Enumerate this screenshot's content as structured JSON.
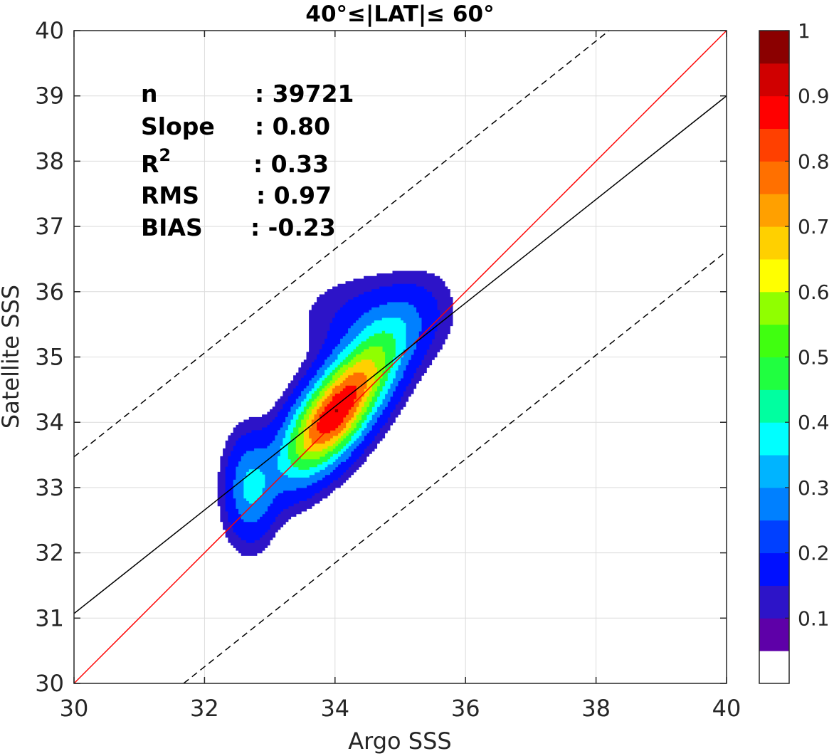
{
  "chart_data": {
    "type": "contour",
    "title": "40°≤|LAT|≤ 60°",
    "xlabel": "Argo SSS",
    "ylabel": "Satellite SSS",
    "xlim": [
      30,
      40
    ],
    "ylim": [
      30,
      40
    ],
    "xticks": [
      30,
      32,
      34,
      36,
      38,
      40
    ],
    "yticks": [
      30,
      31,
      32,
      33,
      34,
      35,
      36,
      37,
      38,
      39,
      40
    ],
    "grid": true,
    "stats": [
      {
        "label": "n",
        "value": ": 39721"
      },
      {
        "label": "Slope",
        "value": ": 0.80"
      },
      {
        "label": "R",
        "sup": "2",
        "value": ": 0.33"
      },
      {
        "label": "RMS",
        "value": ": 0.97"
      },
      {
        "label": "BIAS",
        "value": ": -0.23"
      }
    ],
    "lines": [
      {
        "name": "one-to-one",
        "color": "#ff0000",
        "style": "solid",
        "x": [
          30,
          40
        ],
        "y": [
          30,
          40
        ]
      },
      {
        "name": "regression",
        "color": "#000000",
        "style": "solid",
        "x": [
          30,
          40
        ],
        "y": [
          31.07,
          39.0
        ]
      },
      {
        "name": "upper-bound",
        "color": "#000000",
        "style": "dashed",
        "x": [
          30,
          38.2
        ],
        "y": [
          33.47,
          40.0
        ]
      },
      {
        "name": "lower-bound",
        "color": "#000000",
        "style": "dashed",
        "x": [
          31.68,
          40
        ],
        "y": [
          30.0,
          36.62
        ]
      }
    ],
    "density_peak": {
      "x": 34.0,
      "y": 34.15
    },
    "contour_levels": [
      0.05,
      0.1,
      0.2,
      0.3,
      0.4,
      0.5,
      0.6,
      0.7,
      0.8,
      0.9
    ],
    "colorbar": {
      "range": [
        0,
        1
      ],
      "tick_values": [
        0.1,
        0.2,
        0.3,
        0.4,
        0.5,
        0.6,
        0.7,
        0.8,
        0.9,
        1.0
      ],
      "tick_labels": [
        "0.1",
        "0.2",
        "0.3",
        "0.4",
        "0.5",
        "0.6",
        "0.7",
        "0.8",
        "0.9",
        "1"
      ],
      "colors": [
        "#ffffff",
        "#5e00a8",
        "#2d14c8",
        "#0010ff",
        "#0040ff",
        "#0080ff",
        "#00b4ff",
        "#00ffff",
        "#00ffa0",
        "#20ff40",
        "#40ff10",
        "#90ff00",
        "#ffff00",
        "#ffd000",
        "#ffa000",
        "#ff7000",
        "#ff4000",
        "#ff0000",
        "#d00000",
        "#8b0000"
      ]
    }
  }
}
